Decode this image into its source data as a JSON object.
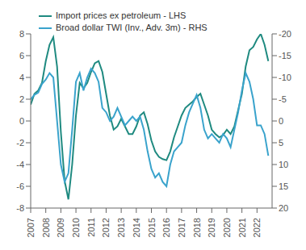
{
  "chart_data": {
    "type": "line",
    "x": [
      2007,
      2007.25,
      2007.5,
      2007.75,
      2008,
      2008.25,
      2008.5,
      2008.75,
      2009,
      2009.25,
      2009.5,
      2009.75,
      2010,
      2010.25,
      2010.5,
      2010.75,
      2011,
      2011.25,
      2011.5,
      2011.75,
      2012,
      2012.25,
      2012.5,
      2012.75,
      2013,
      2013.25,
      2013.5,
      2013.75,
      2014,
      2014.25,
      2014.5,
      2014.75,
      2015,
      2015.25,
      2015.5,
      2015.75,
      2016,
      2016.25,
      2016.5,
      2016.75,
      2017,
      2017.25,
      2017.5,
      2017.75,
      2018,
      2018.25,
      2018.5,
      2018.75,
      2019,
      2019.25,
      2019.5,
      2019.75,
      2020,
      2020.25,
      2020.5,
      2020.75,
      2021,
      2021.25,
      2021.5,
      2021.75,
      2022,
      2022.25,
      2022.5,
      2022.75
    ],
    "series": [
      {
        "name": "Import prices ex petroleum - LHS",
        "color": "#1f8a80",
        "values": [
          1.5,
          2.5,
          2.8,
          3.5,
          5.5,
          7,
          7.7,
          5,
          -1,
          -5.5,
          -7.2,
          -4,
          0.5,
          3.5,
          3,
          3.5,
          4.5,
          5.3,
          5.5,
          4.5,
          2.5,
          0.5,
          -0.8,
          -0.5,
          0.2,
          -0.5,
          -1.2,
          -1.2,
          -0.5,
          0.5,
          0.8,
          -0.3,
          -1.8,
          -2.8,
          -3.3,
          -3.5,
          -3.6,
          -2.8,
          -1.5,
          -0.5,
          0.5,
          1.2,
          1.5,
          1.8,
          2.2,
          2.5,
          1.5,
          0.5,
          -0.8,
          -1.2,
          -1.5,
          -1.3,
          -0.8,
          -1.2,
          -0.5,
          1,
          2.5,
          5,
          6.5,
          6.8,
          7.5,
          8,
          7,
          5.5
        ]
      },
      {
        "name": "Broad dollar TWI (Inv., Adv. 3m) - RHS",
        "color": "#3aa3cc",
        "axis": "y2",
        "values": [
          -5,
          -6,
          -6.5,
          -8.5,
          -9.5,
          -11,
          -10,
          0,
          10,
          14,
          12,
          2,
          -9,
          -11,
          -7,
          -10,
          -12,
          -11,
          -9,
          -3,
          -2,
          0,
          -1,
          -3,
          -1,
          1,
          0,
          -1,
          0,
          -1,
          2,
          7,
          11,
          13,
          12,
          14,
          15,
          10,
          7,
          6,
          5,
          1,
          -2,
          -4,
          -6,
          -3,
          2,
          4,
          3,
          4,
          5,
          3,
          4,
          6,
          2,
          -2,
          -7,
          -11,
          -9,
          -5,
          1,
          1,
          3,
          8
        ]
      }
    ],
    "xlim": [
      2007,
      2023
    ],
    "xticks": [
      2007,
      2008,
      2009,
      2010,
      2011,
      2012,
      2013,
      2014,
      2015,
      2016,
      2017,
      2018,
      2019,
      2020,
      2021,
      2022
    ],
    "ylim": [
      -8,
      8
    ],
    "yticks": [
      -8,
      -6,
      -4,
      -2,
      0,
      2,
      4,
      6,
      8
    ],
    "y2lim": [
      20,
      -20
    ],
    "y2ticks": [
      -20,
      -15,
      -10,
      -5,
      0,
      5,
      10,
      15,
      20
    ],
    "grid": false,
    "legend": "top"
  }
}
